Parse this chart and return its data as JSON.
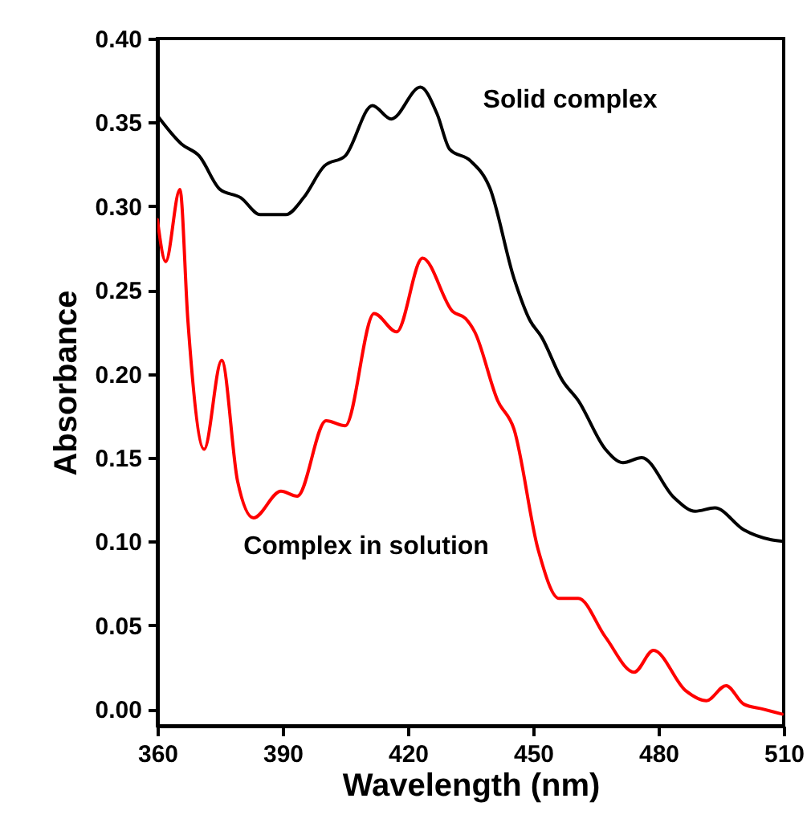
{
  "chart_data": {
    "type": "line",
    "xlabel": "Wavelength (nm)",
    "ylabel": "Absorbance",
    "xlim": [
      360,
      510
    ],
    "xticks": [
      360,
      390,
      420,
      450,
      480,
      510
    ],
    "ylim": [
      -0.01,
      0.4
    ],
    "yticks": [
      {
        "value": 0,
        "label": "0.00"
      },
      0.05,
      {
        "value": 0.1,
        "label": "0.10"
      },
      0.15,
      {
        "value": 0.2,
        "label": "0.20"
      },
      0.25,
      {
        "value": 0.3,
        "label": "0.30"
      },
      0.35,
      {
        "value": 0.4,
        "label": "0.40"
      }
    ],
    "grid": false,
    "legend": false,
    "marker": "none",
    "line_style": "solid",
    "annotations": [
      "Solid complex",
      "Complex in solution"
    ],
    "series": [
      {
        "color": "#000000",
        "x": [
          360,
          365.8,
          370,
          375,
          380,
          384.6,
          390.8,
          395,
          400,
          405,
          411.5,
          416,
          423,
          427,
          430,
          435,
          439.6,
          445.4,
          449.2,
          452,
          457,
          460.8,
          467.3,
          471.5,
          476,
          483.8,
          488.8,
          493.5,
          500.4,
          507,
          510
        ],
        "values": [
          0.354,
          0.337,
          0.33,
          0.31,
          0.305,
          0.295,
          0.295,
          0.305,
          0.324,
          0.33,
          0.36,
          0.352,
          0.371,
          0.355,
          0.334,
          0.327,
          0.311,
          0.257,
          0.232,
          0.222,
          0.196,
          0.184,
          0.155,
          0.147,
          0.15,
          0.126,
          0.118,
          0.12,
          0.107,
          0.101,
          0.1
        ]
      },
      {
        "color": "#ff0000",
        "x": [
          360,
          362,
          365.4,
          367.3,
          371.2,
          375.4,
          379.2,
          383,
          389.6,
          393.5,
          400.4,
          405,
          411.9,
          417.3,
          423.5,
          430.8,
          433.8,
          436,
          441.5,
          445.4,
          451.2,
          456.2,
          460.8,
          467.3,
          474.2,
          478.8,
          486.5,
          491.5,
          496.2,
          500.4,
          505,
          509.6
        ],
        "values": [
          0.292,
          0.267,
          0.31,
          0.232,
          0.155,
          0.208,
          0.136,
          0.114,
          0.13,
          0.127,
          0.172,
          0.169,
          0.236,
          0.225,
          0.269,
          0.237,
          0.233,
          0.225,
          0.184,
          0.167,
          0.095,
          0.066,
          0.066,
          0.043,
          0.022,
          0.035,
          0.011,
          0.005,
          0.014,
          0.003,
          0.0,
          -0.003
        ]
      }
    ]
  }
}
